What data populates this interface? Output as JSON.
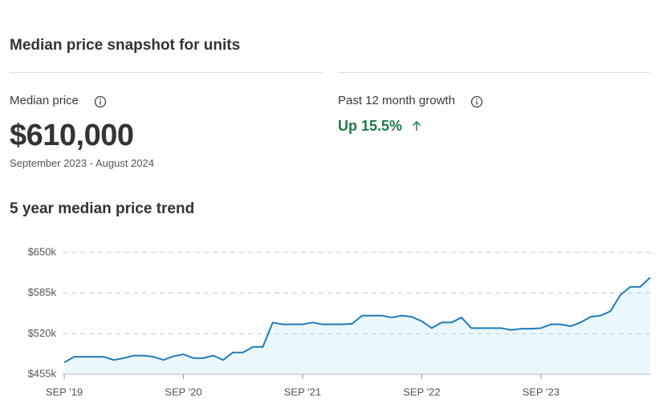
{
  "header": {
    "title": "Median price snapshot for units"
  },
  "stats": [
    {
      "label": "Median price",
      "value": "$610,000",
      "period": "September 2023 - August 2024"
    },
    {
      "label": "Past 12 month growth",
      "value": "Up 15.5%"
    }
  ],
  "chart_data": {
    "type": "line",
    "title": "5 year median price trend",
    "categories": [
      "SEP '19",
      null,
      null,
      null,
      null,
      null,
      null,
      null,
      null,
      null,
      null,
      null,
      "SEP '20",
      null,
      null,
      null,
      null,
      null,
      null,
      null,
      null,
      null,
      null,
      null,
      "SEP '21",
      null,
      null,
      null,
      null,
      null,
      null,
      null,
      null,
      null,
      null,
      null,
      "SEP '22",
      null,
      null,
      null,
      null,
      null,
      null,
      null,
      null,
      null,
      null,
      null,
      "SEP '23",
      null,
      null,
      null,
      null,
      null,
      null,
      null,
      null,
      null,
      null,
      null
    ],
    "values": [
      474000,
      483000,
      483000,
      483000,
      483000,
      478000,
      481000,
      485000,
      485000,
      483000,
      478000,
      484000,
      487000,
      481000,
      481000,
      485000,
      478000,
      490000,
      490000,
      499000,
      499000,
      538000,
      535000,
      535000,
      535000,
      538000,
      535000,
      535000,
      535000,
      536000,
      549000,
      549000,
      549000,
      546000,
      549000,
      547000,
      540000,
      529000,
      538000,
      538000,
      546000,
      529000,
      529000,
      529000,
      529000,
      526000,
      528000,
      528000,
      529000,
      535000,
      535000,
      532000,
      538000,
      547000,
      549000,
      556000,
      582000,
      595000,
      595000,
      610000
    ],
    "color": "#1f7cb8",
    "fill": "#eaf7fd",
    "ylim": [
      455000,
      650000
    ],
    "yticks": [
      {
        "value": 455000,
        "label": "$455k"
      },
      {
        "value": 520000,
        "label": "$520k"
      },
      {
        "value": 585000,
        "label": "$585k"
      },
      {
        "value": 650000,
        "label": "$650k"
      }
    ],
    "grid": true
  }
}
